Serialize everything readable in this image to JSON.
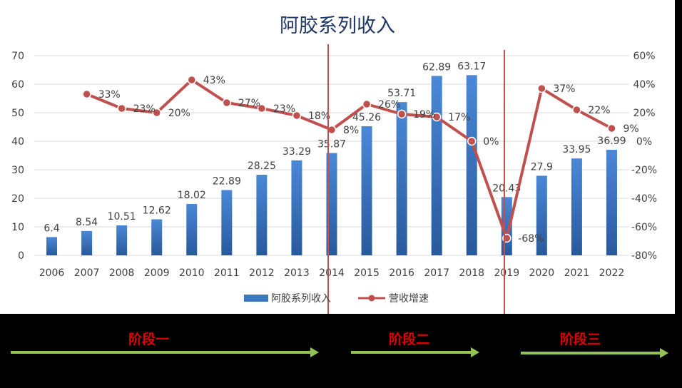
{
  "chart_data": {
    "type": "bar",
    "title": "阿胶系列收入",
    "categories": [
      "2006",
      "2007",
      "2008",
      "2009",
      "2010",
      "2011",
      "2012",
      "2013",
      "2014",
      "2015",
      "2016",
      "2017",
      "2018",
      "2019",
      "2020",
      "2021",
      "2022"
    ],
    "ylim": [
      0,
      70
    ],
    "y_ticks": [
      "0",
      "10",
      "20",
      "30",
      "40",
      "50",
      "60",
      "70"
    ],
    "y2lim": [
      -0.8,
      0.6
    ],
    "y2_ticks": [
      "-80%",
      "-70%",
      "-60%",
      "-50%",
      "-40%",
      "-30%",
      "-20%",
      "-10%",
      "0%",
      "10%",
      "20%",
      "30%",
      "40%",
      "50%",
      "60%"
    ],
    "y2_tick_labels": [
      "-80%",
      "-60%",
      "-40%",
      "-20%",
      "0%",
      "20%",
      "40%",
      "60%"
    ],
    "series": [
      {
        "name": "阿胶系列收入",
        "type": "bar",
        "color": "#3a78c4",
        "values": [
          6.4,
          8.54,
          10.51,
          12.62,
          18.02,
          22.89,
          28.25,
          33.29,
          35.87,
          45.26,
          53.71,
          62.89,
          63.17,
          20.43,
          27.9,
          33.95,
          36.99
        ],
        "labels": [
          "6.4",
          "8.54",
          "10.51",
          "12.62",
          "18.02",
          "22.89",
          "28.25",
          "33.29",
          "35.87",
          "45.26",
          "53.71",
          "62.89",
          "63.17",
          "20.43",
          "27.9",
          "33.95",
          "36.99"
        ]
      },
      {
        "name": "营收增速",
        "type": "line",
        "axis": "right",
        "color": "#c0504d",
        "values": [
          null,
          0.33,
          0.23,
          0.2,
          0.43,
          0.27,
          0.23,
          0.18,
          0.08,
          0.26,
          0.19,
          0.17,
          0.0,
          -0.68,
          0.37,
          0.22,
          0.09
        ],
        "labels": [
          "",
          "33%",
          "23%",
          "20%",
          "43%",
          "27%",
          "23%",
          "18%",
          "8%",
          "26%",
          "19%",
          "17%",
          "0%",
          "-68%",
          "37%",
          "22%",
          "9%"
        ]
      }
    ],
    "legend_position": "bottom",
    "grid": true
  },
  "phases": [
    {
      "label": "阶段一"
    },
    {
      "label": "阶段二"
    },
    {
      "label": "阶段三"
    }
  ],
  "colors": {
    "bar": "#3a78c4",
    "line": "#c0504d",
    "divider": "#c0504d",
    "phase_text": "#e00000",
    "phase_arrow": "#92c353"
  }
}
